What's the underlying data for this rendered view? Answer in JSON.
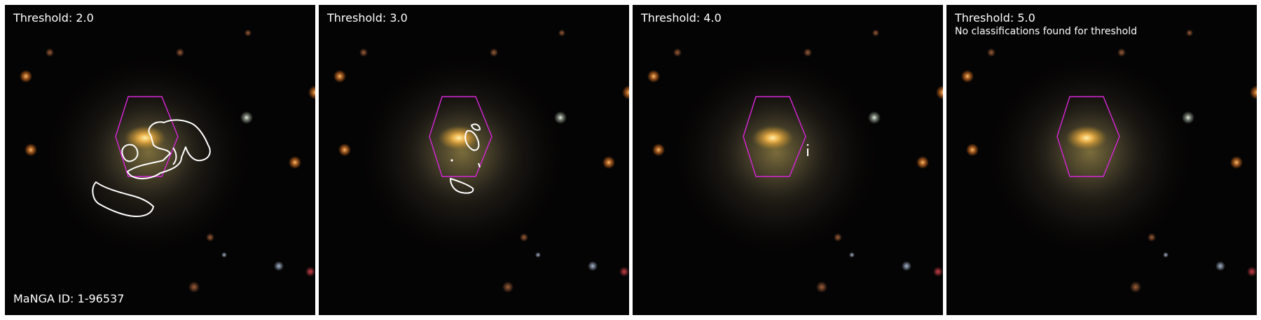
{
  "figure": {
    "manga_id_label": "MaNGA ID: 1-96537",
    "accent_colors": {
      "hexagon": "#d826d8",
      "contour": "#ffffff",
      "background": "#050404"
    },
    "panels": [
      {
        "threshold_label": "Threshold: 2.0",
        "note": ""
      },
      {
        "threshold_label": "Threshold: 3.0",
        "note": ""
      },
      {
        "threshold_label": "Threshold: 4.0",
        "note": ""
      },
      {
        "threshold_label": "Threshold: 5.0",
        "note": "No classifications found for threshold"
      }
    ]
  }
}
